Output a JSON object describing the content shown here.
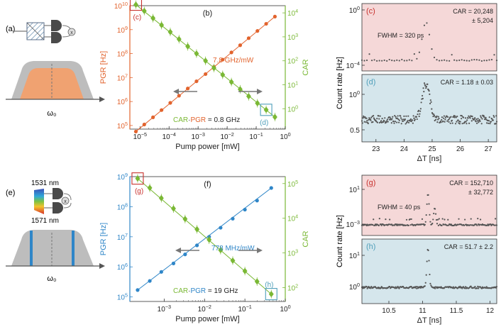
{
  "panel_a": {
    "letter": "(a)",
    "omega": "ω₀"
  },
  "panel_e": {
    "letter": "(e)",
    "wl_top": "1531 nm",
    "wl_bottom": "1571 nm",
    "omega": "ω₀"
  },
  "colors": {
    "orange": "#e2632d",
    "green": "#7ab835",
    "blue": "#2f86c8",
    "gray": "#5a5a5a",
    "red": "#c8312d",
    "pink_bg": "#f5d8d8",
    "cyan_bg": "#d5e6ec",
    "teal": "#4f9fba"
  },
  "chart_data": [
    {
      "type": "scatter",
      "panel": "(b)",
      "xlabel": "Pump power [mW]",
      "ylabel_left": "PGR [Hz]",
      "ylabel_right": "CAR",
      "x_log_range": [
        -5.35,
        0
      ],
      "x_ticks": [
        "10^-5",
        "10^-4",
        "10^-3",
        "10^-2",
        "10^-1",
        "10^0"
      ],
      "yl_ticks": [
        "10^5",
        "10^6",
        "10^7",
        "10^8",
        "10^9",
        "10^10"
      ],
      "yr_ticks": [
        "10^0",
        "10^1",
        "10^2",
        "10^3",
        "10^4"
      ],
      "slope_label": "7.8 GHz/mW",
      "product_label": [
        "CAR",
        "·",
        "PGR",
        " = 0.8 GHz"
      ],
      "box_labels": [
        "(c)",
        "(d)"
      ],
      "series": [
        {
          "name": "PGR",
          "axis": "left",
          "x": [
            7.2e-06,
            1.4e-05,
            2.8e-05,
            5.5e-05,
            0.00011,
            0.00022,
            0.00044,
            0.00088,
            0.0018,
            0.0035,
            0.007,
            0.014,
            0.028,
            0.055,
            0.11,
            0.22,
            0.44
          ],
          "y": [
            56000,
            110000,
            220000,
            440000,
            880000,
            1750000,
            3500000,
            7000000,
            14000000,
            28000000,
            56000000,
            112000000,
            224000000,
            440000000,
            880000000,
            1750000000,
            3500000000
          ]
        },
        {
          "name": "CAR",
          "axis": "right",
          "x": [
            7.2e-06,
            1.4e-05,
            2.8e-05,
            5.5e-05,
            0.00011,
            0.00022,
            0.00044,
            0.00088,
            0.0018,
            0.0035,
            0.007,
            0.014,
            0.028,
            0.055,
            0.11,
            0.22,
            0.44
          ],
          "y": [
            22000,
            12000,
            6000,
            3100,
            1600,
            800,
            400,
            200,
            100,
            50,
            26,
            13,
            6.5,
            3.3,
            1.7,
            0.9,
            0.45
          ]
        }
      ]
    },
    {
      "type": "scatter",
      "panel": "(f)",
      "xlabel": "Pump power [mW]",
      "ylabel_left": "PGR [Hz]",
      "ylabel_right": "CAR",
      "x_log_range": [
        -3.85,
        0
      ],
      "x_ticks": [
        "10^-3",
        "10^-2",
        "10^-1",
        "10^0"
      ],
      "yl_ticks": [
        "10^5",
        "10^6",
        "10^7",
        "10^8",
        "10^9"
      ],
      "yr_ticks": [
        "10^2",
        "10^3",
        "10^4",
        "10^5"
      ],
      "slope_label": "778 MHz/mW",
      "product_label": [
        "CAR",
        "·",
        "PGR",
        " = 19 GHz"
      ],
      "box_labels": [
        "(g)",
        "(h)"
      ],
      "series": [
        {
          "name": "PGR",
          "axis": "left",
          "x": [
            0.00022,
            0.00044,
            0.00085,
            0.0017,
            0.0033,
            0.0065,
            0.013,
            0.025,
            0.05,
            0.1,
            0.2,
            0.45
          ],
          "y": [
            170000,
            340000,
            680000,
            1300000,
            2600000,
            5200000,
            10000000,
            20000000,
            40000000,
            80000000,
            160000000,
            420000000
          ]
        },
        {
          "name": "CAR",
          "axis": "right",
          "x": [
            0.00022,
            0.00044,
            0.00085,
            0.0017,
            0.0033,
            0.0065,
            0.013,
            0.025,
            0.05,
            0.1,
            0.2,
            0.45
          ],
          "y": [
            140000,
            75000,
            38000,
            19000,
            9500,
            4800,
            2400,
            1200,
            600,
            300,
            150,
            65
          ]
        }
      ]
    },
    {
      "type": "scatter",
      "panel": "(c)",
      "car_text": "CAR = 20,248",
      "car_err": "± 5,204",
      "fwhm": "FWHM = 320 ps",
      "y_ticks": [
        "10^0",
        "10^-4"
      ],
      "peak_center_ns": 24.78,
      "peak_fwhm_ns": 0.32
    },
    {
      "type": "scatter",
      "panel": "(d)",
      "car_text": "CAR = 1.18 ± 0.03",
      "xlabel": "ΔT [ns]",
      "x_range": [
        22.5,
        27.3
      ],
      "x_ticks": [
        "23",
        "24",
        "25",
        "26",
        "27"
      ],
      "y_ticks": [
        "10^0",
        "0.5"
      ],
      "peak_center_ns": 24.78,
      "peak_fwhm_ns": 0.32
    },
    {
      "type": "scatter",
      "panel": "(g)",
      "car_text": "CAR = 152,710",
      "car_err": "± 32,772",
      "fwhm": "FWHM = 40 ps",
      "y_ticks": [
        "10^1",
        "10^-3"
      ],
      "peak_center_ns": 11.08,
      "peak_fwhm_ns": 0.04
    },
    {
      "type": "scatter",
      "panel": "(h)",
      "car_text": "CAR = 51.7 ± 2.2",
      "xlabel": "ΔT [ns]",
      "x_range": [
        10.1,
        12.1
      ],
      "x_ticks": [
        "10.5",
        "11",
        "11.5",
        "12"
      ],
      "y_ticks": [
        "10^1",
        "10^0"
      ],
      "peak_center_ns": 11.08,
      "peak_fwhm_ns": 0.04
    }
  ],
  "shared": {
    "count_rate_label": "Count rate [Hz]"
  }
}
